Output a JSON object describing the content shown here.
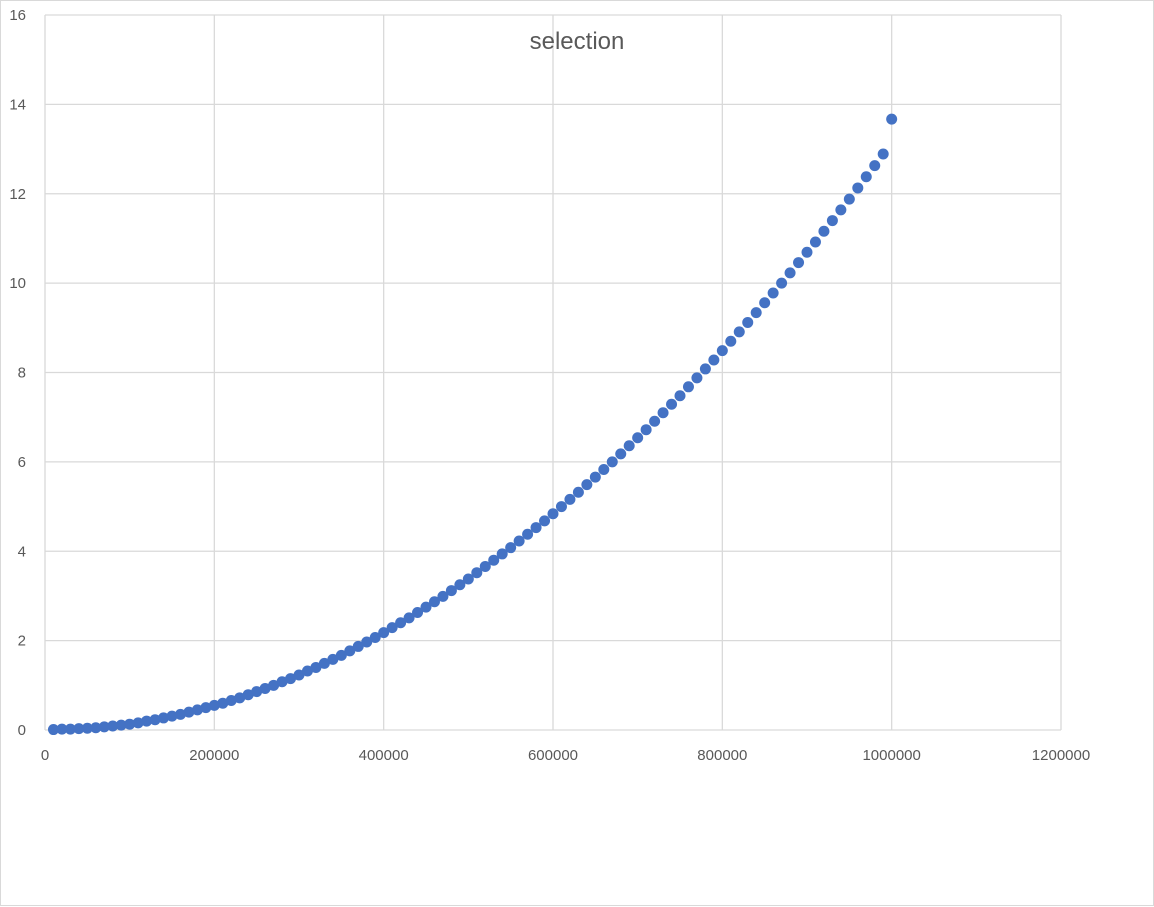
{
  "chart_data": {
    "type": "scatter",
    "title": "selection",
    "xlabel": "",
    "ylabel": "",
    "xlim": [
      0,
      1200000
    ],
    "ylim": [
      0,
      16
    ],
    "x_ticks": [
      "0",
      "200000",
      "400000",
      "600000",
      "800000",
      "1000000",
      "1200000"
    ],
    "y_ticks": [
      "0",
      "2",
      "4",
      "6",
      "8",
      "10",
      "12",
      "14",
      "16"
    ],
    "grid": true,
    "legend": "none",
    "marker_color": "#4472c4",
    "series": [
      {
        "x": [
          10000,
          20000,
          30000,
          40000,
          50000,
          60000,
          70000,
          80000,
          90000,
          100000,
          110000,
          120000,
          130000,
          140000,
          150000,
          160000,
          170000,
          180000,
          190000,
          200000,
          210000,
          220000,
          230000,
          240000,
          250000,
          260000,
          270000,
          280000,
          290000,
          300000,
          310000,
          320000,
          330000,
          340000,
          350000,
          360000,
          370000,
          380000,
          390000,
          400000,
          410000,
          420000,
          430000,
          440000,
          450000,
          460000,
          470000,
          480000,
          490000,
          500000,
          510000,
          520000,
          530000,
          540000,
          550000,
          560000,
          570000,
          580000,
          590000,
          600000,
          610000,
          620000,
          630000,
          640000,
          650000,
          660000,
          670000,
          680000,
          690000,
          700000,
          710000,
          720000,
          730000,
          740000,
          750000,
          760000,
          770000,
          780000,
          790000,
          800000,
          810000,
          820000,
          830000,
          840000,
          850000,
          860000,
          870000,
          880000,
          890000,
          900000,
          910000,
          920000,
          930000,
          940000,
          950000,
          960000,
          970000,
          980000,
          990000,
          1000000
        ],
        "y": [
          0.01,
          0.02,
          0.02,
          0.03,
          0.04,
          0.05,
          0.07,
          0.09,
          0.11,
          0.13,
          0.16,
          0.2,
          0.23,
          0.27,
          0.31,
          0.35,
          0.4,
          0.45,
          0.5,
          0.55,
          0.6,
          0.66,
          0.72,
          0.79,
          0.86,
          0.93,
          1.0,
          1.08,
          1.15,
          1.23,
          1.32,
          1.4,
          1.49,
          1.58,
          1.67,
          1.77,
          1.87,
          1.97,
          2.07,
          2.18,
          2.29,
          2.4,
          2.51,
          2.63,
          2.75,
          2.87,
          2.99,
          3.12,
          3.25,
          3.38,
          3.52,
          3.66,
          3.8,
          3.94,
          4.08,
          4.23,
          4.38,
          4.53,
          4.68,
          4.84,
          5.0,
          5.16,
          5.32,
          5.49,
          5.66,
          5.83,
          6.0,
          6.18,
          6.36,
          6.54,
          6.72,
          6.91,
          7.1,
          7.29,
          7.48,
          7.68,
          7.88,
          8.08,
          8.28,
          8.49,
          8.7,
          8.91,
          9.12,
          9.34,
          9.56,
          9.78,
          10.0,
          10.23,
          10.46,
          10.69,
          10.92,
          11.16,
          11.4,
          11.64,
          11.88,
          12.13,
          12.38,
          12.63,
          12.89,
          13.67
        ]
      }
    ]
  }
}
